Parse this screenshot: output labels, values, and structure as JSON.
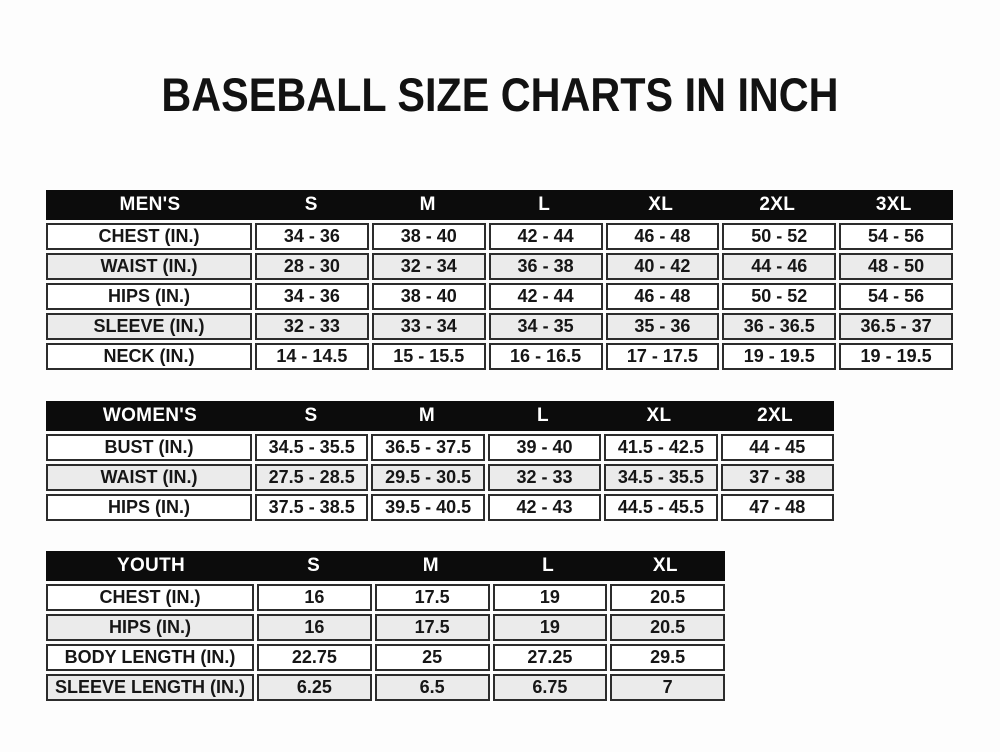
{
  "page": {
    "title": "BASEBALL SIZE CHARTS IN INCH"
  },
  "colors": {
    "page_background": "#ffffff",
    "header_bar_background": "#0c0c0c",
    "header_bar_text": "#ffffff",
    "row_stripe": "#ebebeb",
    "cell_border": "#2c2c2c",
    "text": "#161616"
  },
  "chart_data": [
    {
      "type": "table",
      "name": "MEN'S",
      "columns": [
        "MEN'S",
        "S",
        "M",
        "L",
        "XL",
        "2XL",
        "3XL"
      ],
      "rows": [
        [
          "CHEST (IN.)",
          "34 - 36",
          "38 - 40",
          "42 - 44",
          "46 - 48",
          "50 - 52",
          "54 - 56"
        ],
        [
          "WAIST (IN.)",
          "28 - 30",
          "32 - 34",
          "36 - 38",
          "40 - 42",
          "44 - 46",
          "48 - 50"
        ],
        [
          "HIPS (IN.)",
          "34 - 36",
          "38 - 40",
          "42 - 44",
          "46 - 48",
          "50 - 52",
          "54 - 56"
        ],
        [
          "SLEEVE (IN.)",
          "32 - 33",
          "33 - 34",
          "34 - 35",
          "35 - 36",
          "36 - 36.5",
          "36.5 - 37"
        ],
        [
          "NECK (IN.)",
          "14 - 14.5",
          "15 - 15.5",
          "16 - 16.5",
          "17 - 17.5",
          "19 - 19.5",
          "19 - 19.5"
        ]
      ]
    },
    {
      "type": "table",
      "name": "WOMEN'S",
      "columns": [
        "WOMEN'S",
        "S",
        "M",
        "L",
        "XL",
        "2XL"
      ],
      "rows": [
        [
          "BUST (IN.)",
          "34.5 - 35.5",
          "36.5 - 37.5",
          "39 - 40",
          "41.5 - 42.5",
          "44 - 45"
        ],
        [
          "WAIST (IN.)",
          "27.5 - 28.5",
          "29.5 - 30.5",
          "32 - 33",
          "34.5 - 35.5",
          "37 - 38"
        ],
        [
          "HIPS (IN.)",
          "37.5 - 38.5",
          "39.5 - 40.5",
          "42 - 43",
          "44.5 - 45.5",
          "47 - 48"
        ]
      ]
    },
    {
      "type": "table",
      "name": "YOUTH",
      "columns": [
        "YOUTH",
        "S",
        "M",
        "L",
        "XL"
      ],
      "rows": [
        [
          "CHEST (IN.)",
          "16",
          "17.5",
          "19",
          "20.5"
        ],
        [
          "HIPS (IN.)",
          "16",
          "17.5",
          "19",
          "20.5"
        ],
        [
          "BODY LENGTH (IN.)",
          "22.75",
          "25",
          "27.25",
          "29.5"
        ],
        [
          "SLEEVE LENGTH (IN.)",
          "6.25",
          "6.5",
          "6.75",
          "7"
        ]
      ]
    }
  ]
}
